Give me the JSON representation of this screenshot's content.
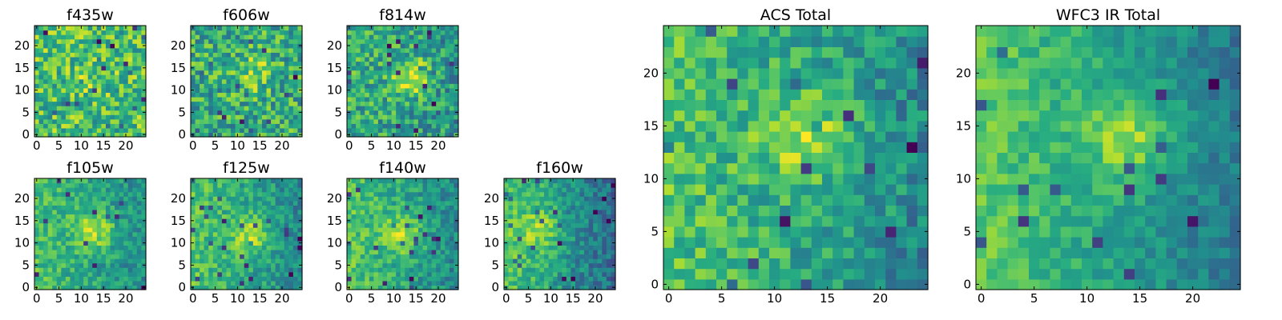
{
  "figure": {
    "background": "#ffffff"
  },
  "chart_data": [
    {
      "type": "heatmap",
      "title": "f435w",
      "grid_size": 25,
      "xticks": [
        0,
        5,
        10,
        15,
        20
      ],
      "yticks": [
        0,
        5,
        10,
        15,
        20
      ],
      "xlim": [
        -0.5,
        24.5
      ],
      "ylim": [
        -0.5,
        24.5
      ],
      "colormap": "viridis",
      "structure": {
        "peak_center": [
          12,
          12
        ],
        "peak_strength": 0.08,
        "noise": 0.5,
        "base": 0.7,
        "gradient": 0.0,
        "seed": 11
      }
    },
    {
      "type": "heatmap",
      "title": "f606w",
      "grid_size": 25,
      "xticks": [
        0,
        5,
        10,
        15,
        20
      ],
      "yticks": [
        0,
        5,
        10,
        15,
        20
      ],
      "xlim": [
        -0.5,
        24.5
      ],
      "ylim": [
        -0.5,
        24.5
      ],
      "colormap": "viridis",
      "structure": {
        "peak_center": [
          14,
          14
        ],
        "peak_strength": 0.2,
        "noise": 0.5,
        "base": 0.62,
        "gradient": 0.0,
        "seed": 23
      }
    },
    {
      "type": "heatmap",
      "title": "f814w",
      "grid_size": 25,
      "xticks": [
        0,
        5,
        10,
        15,
        20
      ],
      "yticks": [
        0,
        5,
        10,
        15,
        20
      ],
      "xlim": [
        -0.5,
        24.5
      ],
      "ylim": [
        -0.5,
        24.5
      ],
      "colormap": "viridis",
      "structure": {
        "peak_center": [
          14,
          13
        ],
        "peak_strength": 0.35,
        "noise": 0.45,
        "base": 0.58,
        "gradient": 0.1,
        "seed": 37
      }
    },
    {
      "type": "heatmap",
      "title": "f105w",
      "grid_size": 25,
      "xticks": [
        0,
        5,
        10,
        15,
        20
      ],
      "yticks": [
        0,
        5,
        10,
        15,
        20
      ],
      "xlim": [
        -0.5,
        24.5
      ],
      "ylim": [
        -0.5,
        24.5
      ],
      "colormap": "viridis",
      "structure": {
        "peak_center": [
          13,
          13
        ],
        "peak_strength": 0.3,
        "noise": 0.3,
        "base": 0.6,
        "gradient": 0.2,
        "seed": 41
      }
    },
    {
      "type": "heatmap",
      "title": "f125w",
      "grid_size": 25,
      "xticks": [
        0,
        5,
        10,
        15,
        20
      ],
      "yticks": [
        0,
        5,
        10,
        15,
        20
      ],
      "xlim": [
        -0.5,
        24.5
      ],
      "ylim": [
        -0.5,
        24.5
      ],
      "colormap": "viridis",
      "structure": {
        "peak_center": [
          13,
          12
        ],
        "peak_strength": 0.3,
        "noise": 0.3,
        "base": 0.6,
        "gradient": 0.25,
        "seed": 53
      }
    },
    {
      "type": "heatmap",
      "title": "f140w",
      "grid_size": 25,
      "xticks": [
        0,
        5,
        10,
        15,
        20
      ],
      "yticks": [
        0,
        5,
        10,
        15,
        20
      ],
      "xlim": [
        -0.5,
        24.5
      ],
      "ylim": [
        -0.5,
        24.5
      ],
      "colormap": "viridis",
      "structure": {
        "peak_center": [
          12,
          12
        ],
        "peak_strength": 0.3,
        "noise": 0.3,
        "base": 0.6,
        "gradient": 0.25,
        "seed": 67
      }
    },
    {
      "type": "heatmap",
      "title": "f160w",
      "grid_size": 25,
      "xticks": [
        0,
        5,
        10,
        15,
        20
      ],
      "yticks": [
        0,
        5,
        10,
        15,
        20
      ],
      "xlim": [
        -0.5,
        24.5
      ],
      "ylim": [
        -0.5,
        24.5
      ],
      "colormap": "viridis",
      "structure": {
        "peak_center": [
          8,
          13
        ],
        "peak_strength": 0.25,
        "noise": 0.3,
        "base": 0.55,
        "gradient": 0.4,
        "seed": 79
      }
    },
    {
      "type": "heatmap",
      "title": "ACS Total",
      "grid_size": 25,
      "xticks": [
        0,
        5,
        10,
        15,
        20
      ],
      "yticks": [
        0,
        5,
        10,
        15,
        20
      ],
      "xlim": [
        -0.5,
        24.5
      ],
      "ylim": [
        -0.5,
        24.5
      ],
      "colormap": "viridis",
      "structure": {
        "peak_center": [
          13,
          14
        ],
        "peak_strength": 0.3,
        "noise": 0.35,
        "base": 0.6,
        "gradient": 0.25,
        "seed": 97
      }
    },
    {
      "type": "heatmap",
      "title": "WFC3 IR Total",
      "grid_size": 25,
      "xticks": [
        0,
        5,
        10,
        15,
        20
      ],
      "yticks": [
        0,
        5,
        10,
        15,
        20
      ],
      "xlim": [
        -0.5,
        24.5
      ],
      "ylim": [
        -0.5,
        24.5
      ],
      "colormap": "viridis",
      "structure": {
        "peak_center": [
          14,
          14
        ],
        "peak_strength": 0.3,
        "noise": 0.22,
        "base": 0.58,
        "gradient": 0.35,
        "seed": 113
      }
    }
  ]
}
